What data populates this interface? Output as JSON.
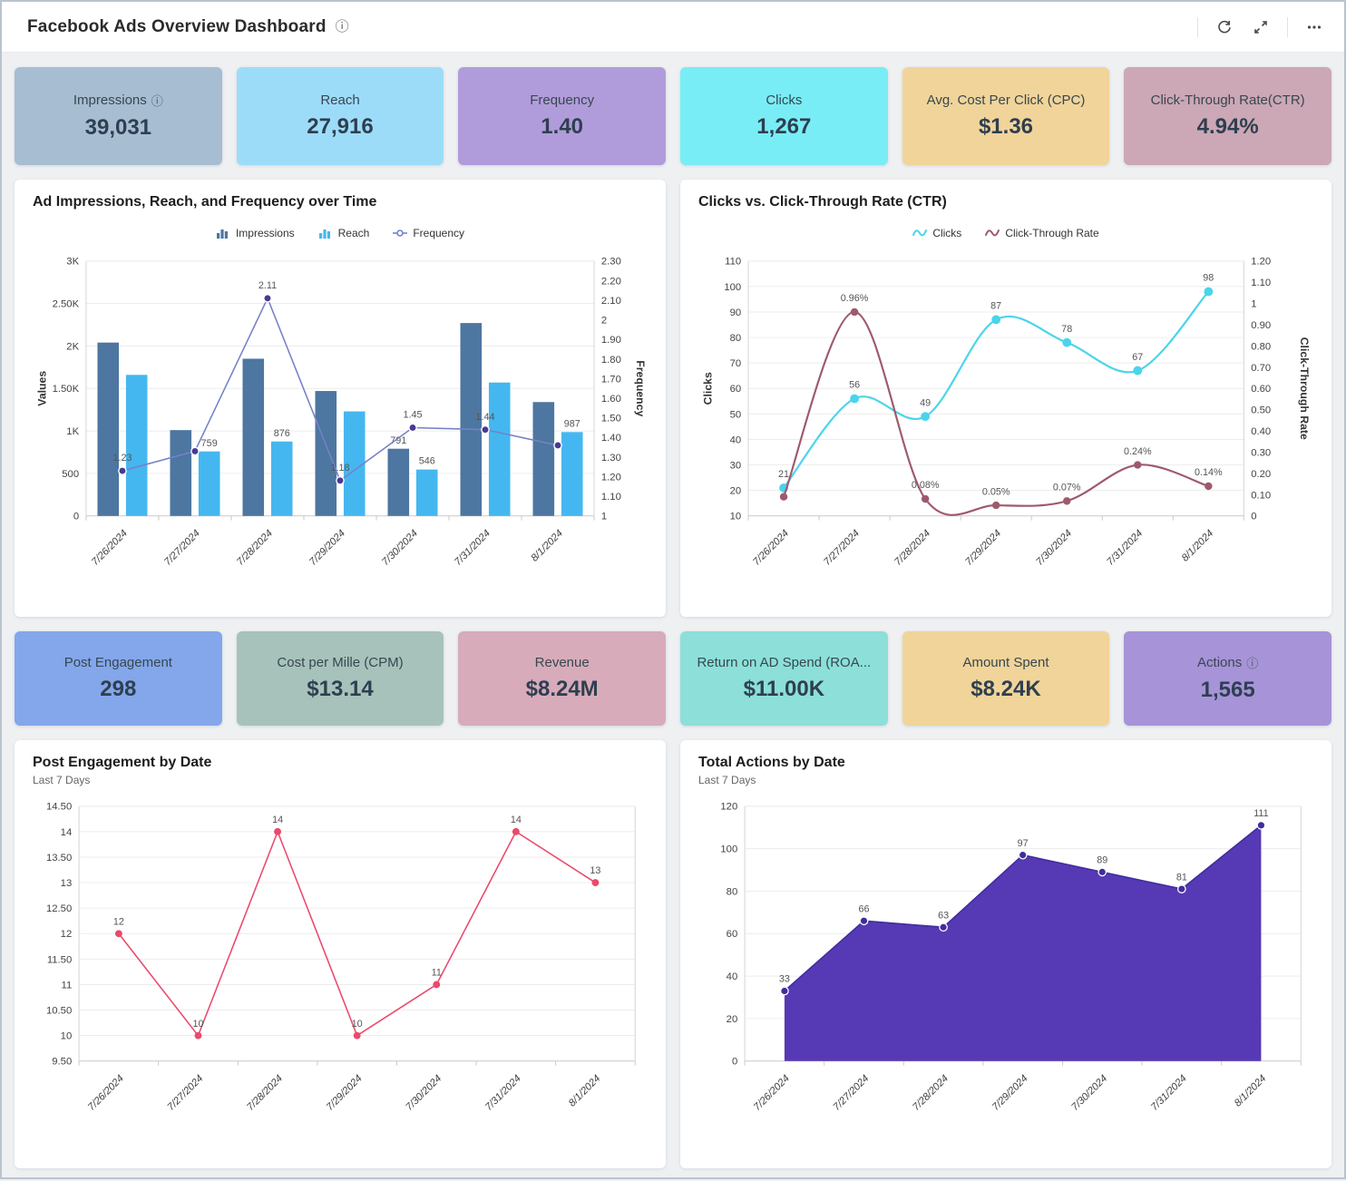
{
  "header": {
    "title": "Facebook Ads Overview Dashboard",
    "info_icon": "info-icon",
    "toolbar_icons": [
      "refresh-icon",
      "expand-icon",
      "more-icon"
    ]
  },
  "kpi_row_1": [
    {
      "label": "Impressions",
      "value": "39,031",
      "bg": "#a7bdd2",
      "has_info": true
    },
    {
      "label": "Reach",
      "value": "27,916",
      "bg": "#9ddcf9"
    },
    {
      "label": "Frequency",
      "value": "1.40",
      "bg": "#b19cdb"
    },
    {
      "label": "Clicks",
      "value": "1,267",
      "bg": "#79edf5"
    },
    {
      "label": "Avg. Cost Per Click (CPC)",
      "value": "$1.36",
      "bg": "#f1d49a"
    },
    {
      "label": "Click-Through Rate(CTR)",
      "value": "4.94%",
      "bg": "#cca7b5"
    }
  ],
  "kpi_row_2": [
    {
      "label": "Post Engagement",
      "value": "298",
      "bg": "#83a7ea"
    },
    {
      "label": "Cost per Mille (CPM)",
      "value": "$13.14",
      "bg": "#a7c2bb"
    },
    {
      "label": "Revenue",
      "value": "$8.24M",
      "bg": "#d7abba"
    },
    {
      "label": "Return on AD Spend (ROA...",
      "value": "$11.00K",
      "bg": "#8ce0d9"
    },
    {
      "label": "Amount Spent",
      "value": "$8.24K",
      "bg": "#f1d49a"
    },
    {
      "label": "Actions",
      "value": "1,565",
      "bg": "#a793d8",
      "has_info": true
    }
  ],
  "chart_data": [
    {
      "type": "bar",
      "subtype": "combo_bar_line_dual_axis",
      "title": "Ad Impressions, Reach, and Frequency over Time",
      "legend": true,
      "categories": [
        "7/26/2024",
        "7/27/2024",
        "7/28/2024",
        "7/29/2024",
        "7/30/2024",
        "7/31/2024",
        "8/1/2024"
      ],
      "series": [
        {
          "name": "Impressions",
          "type": "bar",
          "legend_icon": "bars-icon",
          "color": "#4d76a0",
          "values": [
            2040,
            1010,
            1850,
            1470,
            791,
            2270,
            1340
          ],
          "labels": [
            null,
            null,
            null,
            null,
            "791",
            null,
            null
          ]
        },
        {
          "name": "Reach",
          "type": "bar",
          "legend_icon": "bars-icon",
          "color": "#45b7f0",
          "values": [
            1660,
            759,
            876,
            1230,
            546,
            1570,
            987
          ],
          "labels": [
            null,
            "759",
            "876",
            null,
            "546",
            null,
            "987"
          ]
        },
        {
          "name": "Frequency",
          "type": "line",
          "axis": "right",
          "legend_icon": "line-marker-icon",
          "color": "#7582c8",
          "marker_color": "#453a96",
          "values": [
            1.23,
            1.33,
            2.11,
            1.18,
            1.45,
            1.44,
            1.36
          ],
          "labels": [
            "1.23",
            null,
            "2.11",
            "1.18",
            "1.45",
            "1.44",
            null
          ]
        }
      ],
      "left_axis": {
        "title": "Values",
        "min": 0,
        "max": 3000,
        "ticks": [
          "0",
          "500",
          "1K",
          "1.50K",
          "2K",
          "2.50K",
          "3K"
        ]
      },
      "right_axis": {
        "title": "Frequency",
        "min": 1,
        "max": 2.3,
        "ticks": [
          "1",
          "1.10",
          "1.20",
          "1.30",
          "1.40",
          "1.50",
          "1.60",
          "1.70",
          "1.80",
          "1.90",
          "2",
          "2.10",
          "2.20",
          "2.30"
        ]
      },
      "grid": true,
      "legend_position": "top"
    },
    {
      "type": "line",
      "subtype": "dual_axis_smooth",
      "title": "Clicks vs. Click-Through Rate (CTR)",
      "legend": true,
      "categories": [
        "7/26/2024",
        "7/27/2024",
        "7/28/2024",
        "7/29/2024",
        "7/30/2024",
        "7/31/2024",
        "8/1/2024"
      ],
      "series": [
        {
          "name": "Clicks",
          "axis": "left",
          "legend_icon": "wave-icon",
          "color": "#4ad4ec",
          "values": [
            21,
            56,
            49,
            87,
            78,
            67,
            98
          ],
          "labels": [
            "21",
            "56",
            "49",
            "87",
            "78",
            "67",
            "98"
          ]
        },
        {
          "name": "Click-Through Rate",
          "axis": "right",
          "legend_icon": "wave-icon",
          "color": "#9e5a6c",
          "values": [
            0.09,
            0.96,
            0.08,
            0.05,
            0.07,
            0.24,
            0.14
          ],
          "labels": [
            null,
            "0.96%",
            "0.08%",
            "0.05%",
            "0.07%",
            "0.24%",
            "0.14%"
          ]
        }
      ],
      "left_axis": {
        "title": "Clicks",
        "min": 10,
        "max": 110,
        "ticks": [
          "10",
          "20",
          "30",
          "40",
          "50",
          "60",
          "70",
          "80",
          "90",
          "100",
          "110"
        ]
      },
      "right_axis": {
        "title": "Click-Through Rate",
        "min": 0,
        "max": 1.2,
        "ticks": [
          "0",
          "0.10",
          "0.20",
          "0.30",
          "0.40",
          "0.50",
          "0.60",
          "0.70",
          "0.80",
          "0.90",
          "1",
          "1.10",
          "1.20"
        ]
      },
      "grid": true,
      "legend_position": "top"
    },
    {
      "type": "line",
      "title": "Post Engagement by Date",
      "subtitle": "Last 7 Days",
      "legend": false,
      "categories": [
        "7/26/2024",
        "7/27/2024",
        "7/28/2024",
        "7/29/2024",
        "7/30/2024",
        "7/31/2024",
        "8/1/2024"
      ],
      "series": [
        {
          "name": "Post Engagement",
          "color": "#ea4a6c",
          "values": [
            12,
            10,
            14,
            10,
            11,
            14,
            13
          ],
          "labels": [
            "12",
            "10",
            "14",
            "10",
            "11",
            "14",
            "13"
          ]
        }
      ],
      "left_axis": {
        "min": 9.5,
        "max": 14.5,
        "ticks": [
          "9.50",
          "10",
          "10.50",
          "11",
          "11.50",
          "12",
          "12.50",
          "13",
          "13.50",
          "14",
          "14.50"
        ]
      },
      "grid": true
    },
    {
      "type": "area",
      "title": "Total Actions by Date",
      "subtitle": "Last 7 Days",
      "legend": false,
      "categories": [
        "7/26/2024",
        "7/27/2024",
        "7/28/2024",
        "7/29/2024",
        "7/30/2024",
        "7/31/2024",
        "8/1/2024"
      ],
      "series": [
        {
          "name": "Total Actions",
          "color": "#5639b4",
          "marker_color": "#3f2d9e",
          "values": [
            33,
            66,
            63,
            97,
            89,
            81,
            111
          ],
          "labels": [
            "33",
            "66",
            "63",
            "97",
            "89",
            "81",
            "111"
          ]
        }
      ],
      "left_axis": {
        "min": 0,
        "max": 120,
        "ticks": [
          "0",
          "20",
          "40",
          "60",
          "80",
          "100",
          "120"
        ]
      },
      "grid": true
    }
  ]
}
